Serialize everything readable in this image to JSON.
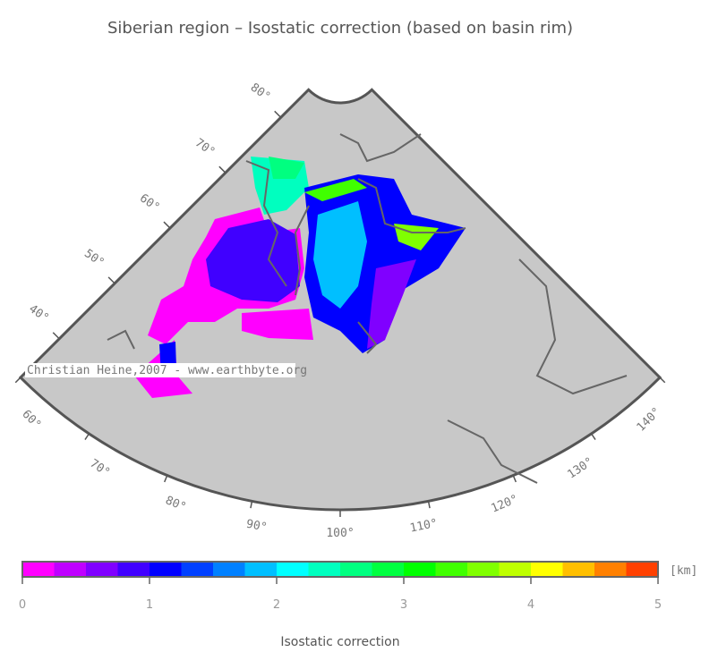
{
  "title": "Siberian region – Isostatic correction (based on basin rim)",
  "map": {
    "lat_labels": [
      {
        "value": 80,
        "label": "80°"
      },
      {
        "value": 70,
        "label": "70°"
      },
      {
        "value": 60,
        "label": "60°"
      },
      {
        "value": 50,
        "label": "50°"
      },
      {
        "value": 40,
        "label": "40°"
      }
    ],
    "lon_labels": [
      {
        "value": 60,
        "label": "60°"
      },
      {
        "value": 70,
        "label": "70°"
      },
      {
        "value": 80,
        "label": "80°"
      },
      {
        "value": 90,
        "label": "90°"
      },
      {
        "value": 100,
        "label": "100°"
      },
      {
        "value": 110,
        "label": "110°"
      },
      {
        "value": 120,
        "label": "120°"
      },
      {
        "value": 130,
        "label": "130°"
      },
      {
        "value": 140,
        "label": "140°"
      }
    ],
    "watermark": "Christian Heine,2007 - www.earthbyte.org"
  },
  "colorbar": {
    "bins": [
      0,
      0.25,
      0.5,
      0.75,
      1,
      1.25,
      1.5,
      1.75,
      2,
      2.25,
      2.5,
      2.75,
      3,
      3.25,
      3.5,
      3.75,
      4,
      4.25,
      4.5,
      4.75,
      5
    ],
    "colors": [
      "#ff00ff",
      "#bf00ff",
      "#8000ff",
      "#4000ff",
      "#0000ff",
      "#0040ff",
      "#0080ff",
      "#00bfff",
      "#00ffff",
      "#00ffbf",
      "#00ff80",
      "#00ff40",
      "#00ff00",
      "#40ff00",
      "#80ff00",
      "#bfff00",
      "#ffff00",
      "#ffbf00",
      "#ff8000",
      "#ff4000"
    ],
    "xlim": [
      0,
      5
    ],
    "xticks": [
      0,
      1,
      2,
      3,
      4,
      5
    ],
    "unit": "[km]",
    "label": "Isostatic correction"
  }
}
